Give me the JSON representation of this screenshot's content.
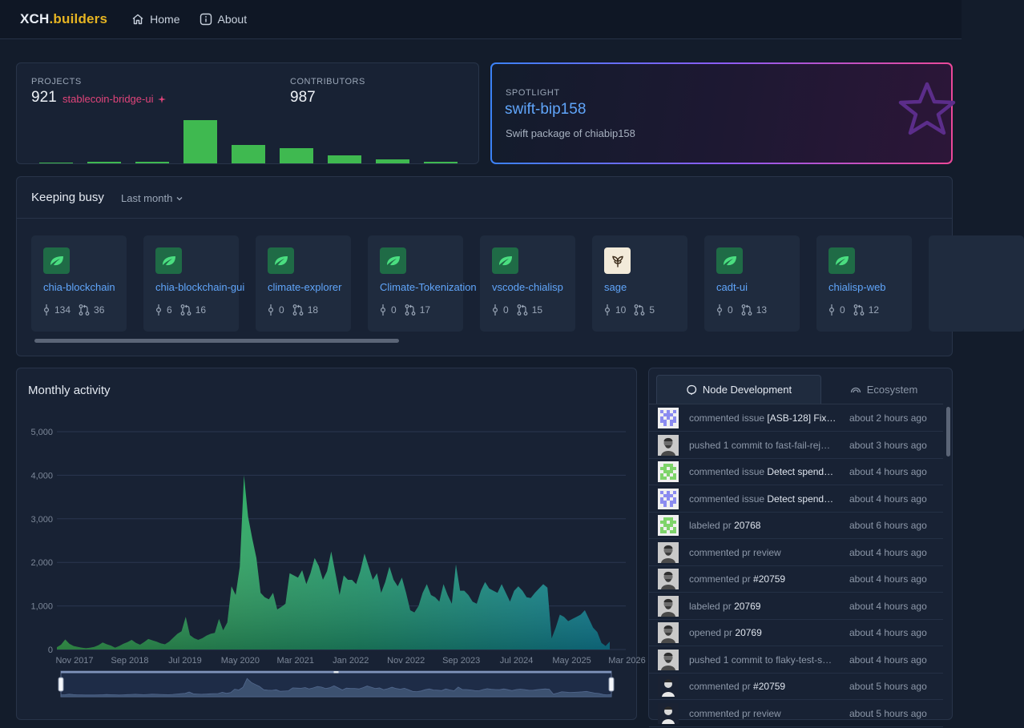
{
  "nav": {
    "logo_main": "XCH",
    "logo_accent": ".builders",
    "links": [
      {
        "label": "Home",
        "icon": "home-icon"
      },
      {
        "label": "About",
        "icon": "info-icon"
      }
    ]
  },
  "stats": {
    "projects_label": "PROJECTS",
    "projects_value": "921",
    "projects_link": "stablecoin-bridge-ui",
    "contributors_label": "CONTRIBUTORS",
    "contributors_value": "987",
    "bar_levels": [
      1,
      2,
      2,
      53,
      23,
      19,
      10,
      5,
      2
    ]
  },
  "spotlight": {
    "label": "SPOTLIGHT",
    "title": "swift-bip158",
    "description": "Swift package of chiabip158"
  },
  "busy": {
    "title": "Keeping busy",
    "filter": "Last month",
    "repos": [
      {
        "name": "chia-blockchain",
        "commits": "134",
        "prs": "36",
        "icon": "leaf"
      },
      {
        "name": "chia-blockchain-gui",
        "commits": "6",
        "prs": "16",
        "icon": "leaf"
      },
      {
        "name": "climate-explorer",
        "commits": "0",
        "prs": "18",
        "icon": "leaf"
      },
      {
        "name": "Climate-Tokenization",
        "commits": "0",
        "prs": "17",
        "icon": "leaf"
      },
      {
        "name": "vscode-chialisp",
        "commits": "0",
        "prs": "15",
        "icon": "leaf"
      },
      {
        "name": "sage",
        "commits": "10",
        "prs": "5",
        "icon": "sprout"
      },
      {
        "name": "cadt-ui",
        "commits": "0",
        "prs": "13",
        "icon": "leaf"
      },
      {
        "name": "chialisp-web",
        "commits": "0",
        "prs": "12",
        "icon": "leaf"
      }
    ]
  },
  "activity": {
    "title": "Monthly activity"
  },
  "chart_data": {
    "type": "area",
    "title": "Monthly activity",
    "ylim": [
      0,
      5000
    ],
    "y_ticks": [
      "0",
      "1,000",
      "2,000",
      "3,000",
      "4,000",
      "5,000"
    ],
    "x_tick_labels": [
      "Nov 2017",
      "Sep 2018",
      "Jul 2019",
      "May 2020",
      "Mar 2021",
      "Jan 2022",
      "Nov 2022",
      "Sep 2023",
      "Jul 2024",
      "May 2025",
      "Mar 2026"
    ],
    "series": [
      {
        "values": [
          50,
          110,
          230,
          130,
          80,
          60,
          40,
          30,
          40,
          60,
          100,
          160,
          120,
          90,
          40,
          80,
          130,
          170,
          220,
          150,
          110,
          170,
          240,
          210,
          180,
          140,
          120,
          180,
          270,
          360,
          420,
          750,
          330,
          260,
          220,
          260,
          320,
          360,
          380,
          700,
          440,
          620,
          1450,
          1250,
          1900,
          4000,
          3050,
          2550,
          2100,
          1300,
          1200,
          1150,
          1300,
          920,
          980,
          1050,
          1750,
          1700,
          1650,
          1820,
          1500,
          1750,
          2100,
          1920,
          1600,
          1800,
          2250,
          1750,
          1250,
          1700,
          1600,
          1600,
          1500,
          1800,
          2200,
          1900,
          1600,
          1750,
          1300,
          1550,
          1900,
          1600,
          1450,
          1650,
          1300,
          900,
          850,
          1000,
          1300,
          1500,
          1250,
          1200,
          1100,
          1500,
          1250,
          1050,
          1950,
          1350,
          1350,
          1250,
          1100,
          1050,
          1350,
          1550,
          1400,
          1350,
          1300,
          1500,
          1300,
          1100,
          1350,
          1450,
          1350,
          1200,
          1180,
          1300,
          1400,
          1500,
          1420,
          250,
          500,
          800,
          750,
          650,
          700,
          750,
          800,
          900,
          700,
          500,
          400,
          150,
          80,
          180
        ]
      }
    ]
  },
  "feed": {
    "tabs": [
      {
        "label": "Node Development",
        "icon": "chia-icon",
        "active": true
      },
      {
        "label": "Ecosystem",
        "icon": "rainbow-icon",
        "active": false
      }
    ],
    "items": [
      {
        "action": "commented issue",
        "target": "[ASB-128] Fix…",
        "time": "about 2 hours ago",
        "avatar": "identicon-purple"
      },
      {
        "action": "pushed 1 commit to",
        "target": "fast-fail-rej…",
        "target_muted": true,
        "time": "about 3 hours ago",
        "avatar": "photo-gray"
      },
      {
        "action": "commented issue",
        "target": "Detect spend…",
        "time": "about 4 hours ago",
        "avatar": "identicon-green"
      },
      {
        "action": "commented issue",
        "target": "Detect spend…",
        "time": "about 4 hours ago",
        "avatar": "identicon-purple"
      },
      {
        "action": "labeled pr",
        "target": "20768",
        "time": "about 6 hours ago",
        "avatar": "identicon-green"
      },
      {
        "action": "commented pr review",
        "target": "",
        "time": "about 4 hours ago",
        "avatar": "photo-gray"
      },
      {
        "action": "commented pr",
        "target": "#20759",
        "time": "about 4 hours ago",
        "avatar": "photo-gray"
      },
      {
        "action": "labeled pr",
        "target": "20769",
        "time": "about 4 hours ago",
        "avatar": "photo-gray"
      },
      {
        "action": "opened pr",
        "target": "20769",
        "time": "about 4 hours ago",
        "avatar": "photo-gray"
      },
      {
        "action": "pushed 1 commit to",
        "target": "flaky-test-s…",
        "target_muted": true,
        "time": "about 4 hours ago",
        "avatar": "photo-gray"
      },
      {
        "action": "commented pr",
        "target": "#20759",
        "time": "about 5 hours ago",
        "avatar": "photo-dark"
      },
      {
        "action": "commented pr review",
        "target": "",
        "time": "about 5 hours ago",
        "avatar": "photo-dark"
      }
    ]
  }
}
